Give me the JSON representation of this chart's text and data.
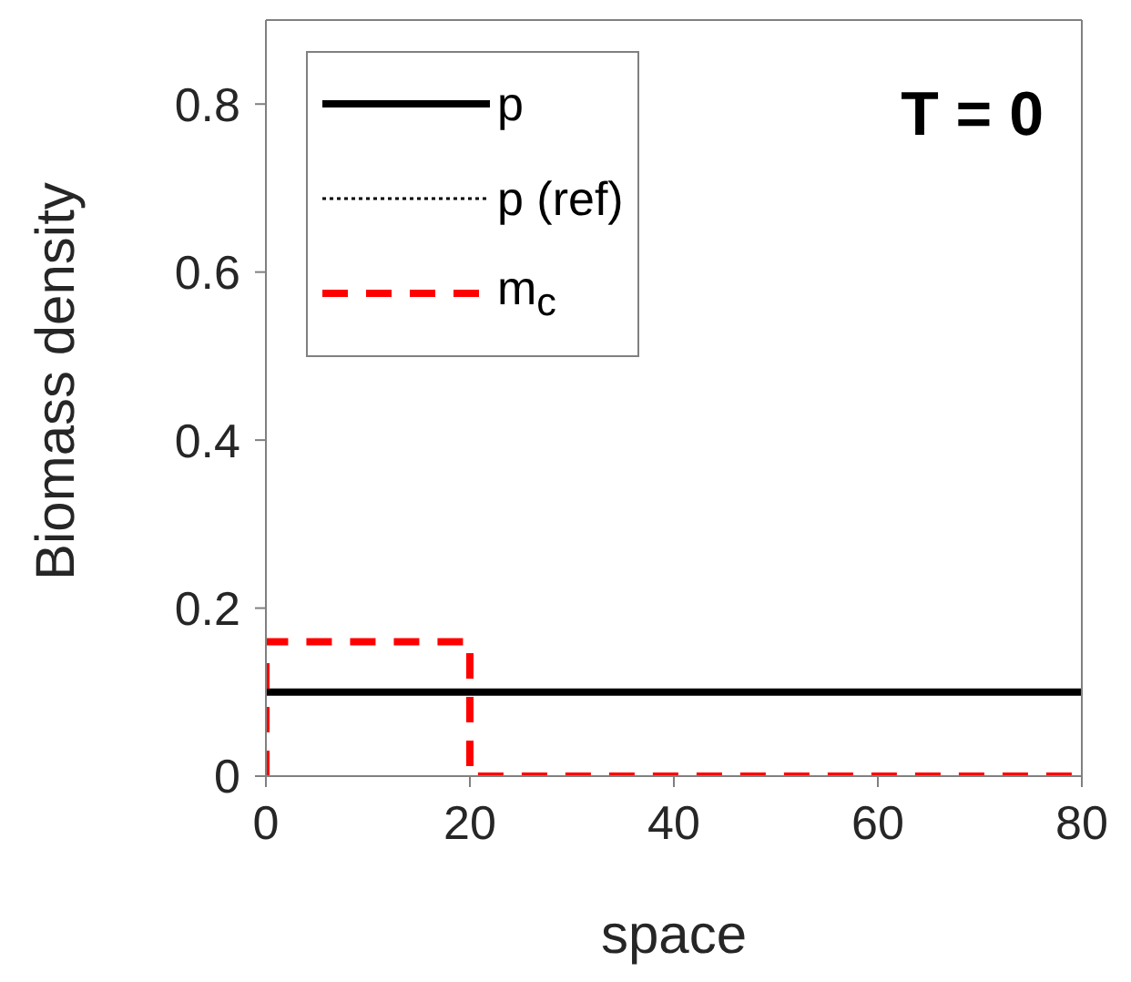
{
  "chart_data": {
    "type": "line",
    "xlabel": "space",
    "ylabel": "Biomass density",
    "xlim": [
      0,
      80
    ],
    "xticks": [
      0,
      20,
      40,
      60,
      80
    ],
    "ylim": [
      0,
      0.9
    ],
    "yticks": [
      0,
      0.2,
      0.4,
      0.6,
      0.8
    ],
    "legend": "top left",
    "marker": "none",
    "annotations": [
      "T = 0"
    ],
    "series": [
      {
        "name": "p",
        "color": "#000000",
        "line_style": "solid",
        "x": [
          0,
          80
        ],
        "values": [
          0.1,
          0.1
        ]
      },
      {
        "name": "p (ref)",
        "color": "#000000",
        "line_style": "dotted",
        "values": [
          null
        ]
      },
      {
        "name": "m$_{c}$",
        "color": "#ff0000",
        "line_style": "dashed",
        "x": [
          0,
          0,
          20,
          20,
          80
        ],
        "values": [
          0,
          0.16,
          0.16,
          0,
          0
        ]
      }
    ]
  }
}
